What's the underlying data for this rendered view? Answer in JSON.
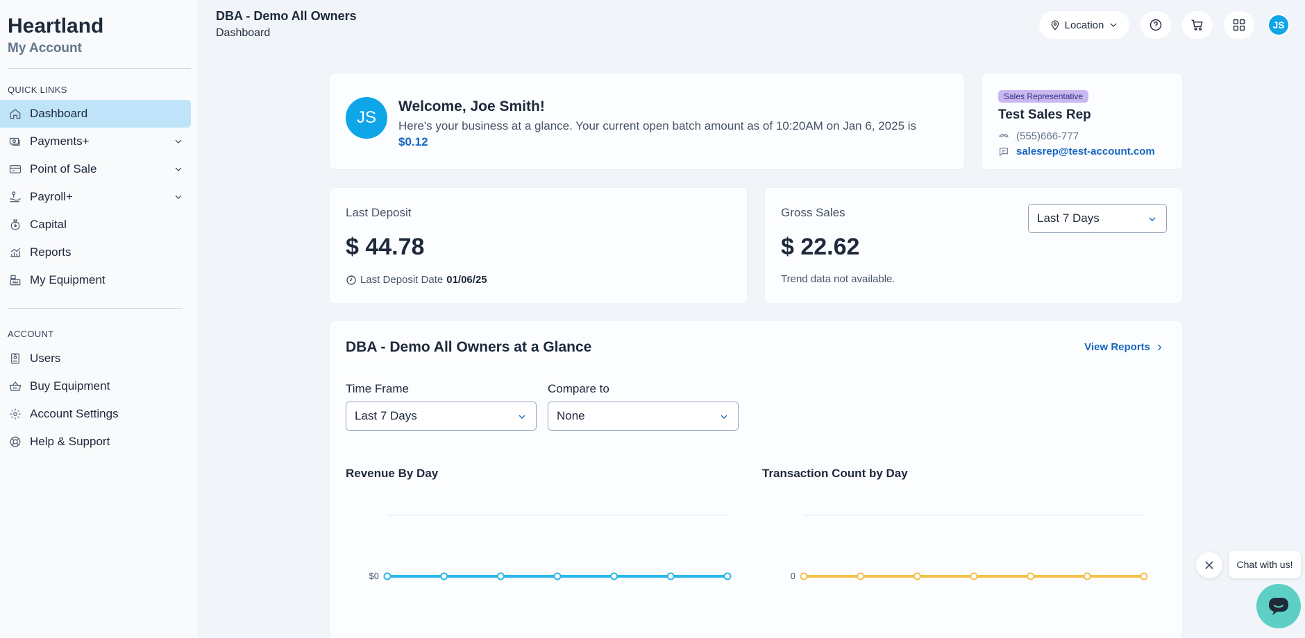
{
  "brand": {
    "title": "Heartland",
    "subtitle": "My Account"
  },
  "sidebar": {
    "quick_links_label": "QUICK LINKS",
    "account_label": "ACCOUNT",
    "items": [
      {
        "label": "Dashboard",
        "icon": "home-icon",
        "active": true
      },
      {
        "label": "Payments+",
        "icon": "payments-icon",
        "expandable": true
      },
      {
        "label": "Point of Sale",
        "icon": "credit-card-icon",
        "expandable": true
      },
      {
        "label": "Payroll+",
        "icon": "payroll-icon",
        "expandable": true
      },
      {
        "label": "Capital",
        "icon": "money-bag-icon"
      },
      {
        "label": "Reports",
        "icon": "chart-icon"
      },
      {
        "label": "My Equipment",
        "icon": "register-icon"
      }
    ],
    "account_items": [
      {
        "label": "Users",
        "icon": "badge-icon"
      },
      {
        "label": "Buy Equipment",
        "icon": "basket-icon"
      },
      {
        "label": "Account Settings",
        "icon": "gear-icon"
      },
      {
        "label": "Help & Support",
        "icon": "lifebuoy-icon"
      }
    ]
  },
  "header": {
    "title": "DBA - Demo All Owners",
    "breadcrumb": "Dashboard",
    "location_label": "Location",
    "avatar_initials": "JS"
  },
  "welcome": {
    "initials": "JS",
    "title": "Welcome, Joe Smith!",
    "text": "Here's your business at a glance. Your current open batch amount as of 10:20AM on Jan 6, 2025 is",
    "amount": "$0.12"
  },
  "sales_rep": {
    "badge": "Sales Representative",
    "name": "Test Sales Rep",
    "phone": "(555)666-777",
    "email": "salesrep@test-account.com"
  },
  "last_deposit": {
    "label": "Last Deposit",
    "value": "$ 44.78",
    "date_label": "Last Deposit Date",
    "date": "01/06/25"
  },
  "gross_sales": {
    "label": "Gross Sales",
    "value": "$ 22.62",
    "note": "Trend data not available.",
    "range": "Last 7 Days"
  },
  "glance": {
    "title": "DBA - Demo All Owners at a Glance",
    "view_reports": "View Reports",
    "time_frame_label": "Time Frame",
    "time_frame_value": "Last 7 Days",
    "compare_label": "Compare to",
    "compare_value": "None"
  },
  "chart_data": [
    {
      "type": "line",
      "title": "Revenue By Day",
      "ytick_labels": [
        "$0"
      ],
      "points": 7,
      "values": [
        0,
        0,
        0,
        0,
        0,
        0,
        0
      ],
      "color": "#29b6e8"
    },
    {
      "type": "line",
      "title": "Transaction Count by Day",
      "ytick_labels": [
        "0"
      ],
      "points": 7,
      "values": [
        0,
        0,
        0,
        0,
        0,
        0,
        0
      ],
      "color": "#f5c04a"
    }
  ],
  "chat": {
    "bubble": "Chat with us!"
  }
}
